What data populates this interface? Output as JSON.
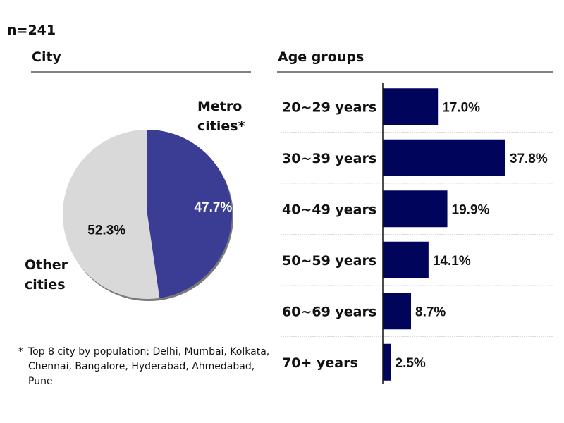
{
  "sample_size": "n=241",
  "city_section": {
    "title": "City",
    "labels": {
      "metro": "Metro cities*",
      "other": "Other cities"
    },
    "footnote_marker": "*",
    "footnote": "Top 8 city by population: Delhi, Mumbai, Kolkata, Chennai, Bangalore, Hyderabad, Ahmedabad, Pune"
  },
  "age_section": {
    "title": "Age groups"
  },
  "colors": {
    "metro": "#3a3d93",
    "other": "#d9d9d9",
    "bar": "#00045a",
    "rule": "#808080"
  },
  "chart_data": [
    {
      "type": "pie",
      "title": "City",
      "slices": [
        {
          "name": "Metro cities*",
          "value": 47.7,
          "label": "47.7%"
        },
        {
          "name": "Other cities",
          "value": 52.3,
          "label": "52.3%"
        }
      ]
    },
    {
      "type": "bar",
      "orientation": "horizontal",
      "title": "Age groups",
      "categories": [
        "20~29 years",
        "30~39 years",
        "40~49 years",
        "50~59 years",
        "60~69 years",
        "70+ years"
      ],
      "values": [
        17.0,
        37.8,
        19.9,
        14.1,
        8.7,
        2.5
      ],
      "value_labels": [
        "17.0%",
        "37.8%",
        "19.9%",
        "14.1%",
        "8.7%",
        "2.5%"
      ],
      "unit": "%"
    }
  ]
}
